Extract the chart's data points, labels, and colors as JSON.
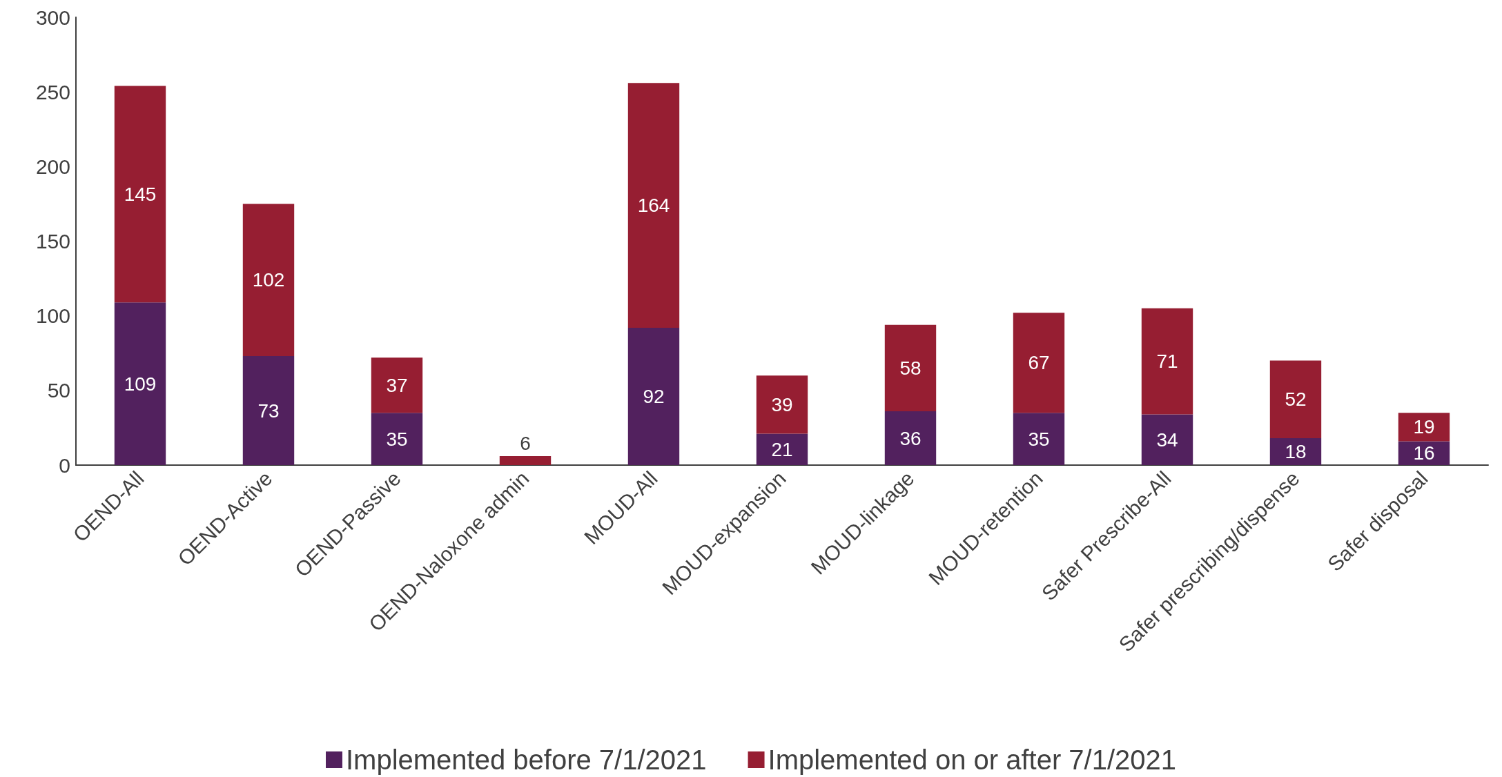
{
  "chart_data": {
    "type": "bar",
    "stacked": true,
    "legend": "bottom",
    "grid": false,
    "categories": [
      "OEND-All",
      "OEND-Active",
      "OEND-Passive",
      "OEND-Naloxone admin",
      "MOUD-All",
      "MOUD-expansion",
      "MOUD-linkage",
      "MOUD-retention",
      "Safer Prescribe-All",
      "Safer prescribing/dispense",
      "Safer disposal"
    ],
    "series": [
      {
        "name": "Implemented before 7/1/2021",
        "color": "#52215e",
        "values": [
          109,
          73,
          35,
          0,
          92,
          21,
          36,
          35,
          34,
          18,
          16
        ],
        "value_labels": [
          "109",
          "73",
          "35",
          null,
          "92",
          "21",
          "36",
          "35",
          "34",
          "18",
          "16"
        ]
      },
      {
        "name": "Implemented on or after 7/1/2021",
        "color": "#961e32",
        "values": [
          145,
          102,
          37,
          6,
          164,
          39,
          58,
          67,
          71,
          52,
          19
        ],
        "value_labels": [
          "145",
          "102",
          "37",
          "6",
          "164",
          "39",
          "58",
          "67",
          "71",
          "52",
          "19"
        ]
      }
    ],
    "ylim": [
      0,
      300
    ],
    "yticks": [
      0,
      50,
      100,
      150,
      200,
      250,
      300
    ]
  }
}
